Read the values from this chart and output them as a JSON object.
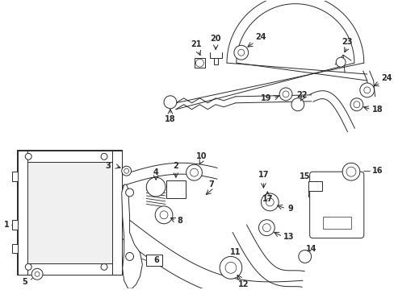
{
  "bg_color": "#ffffff",
  "line_color": "#2a2a2a",
  "figsize": [
    4.89,
    3.6
  ],
  "dpi": 100,
  "lw_main": 1.0,
  "lw_thin": 0.7,
  "lw_thick": 1.4
}
